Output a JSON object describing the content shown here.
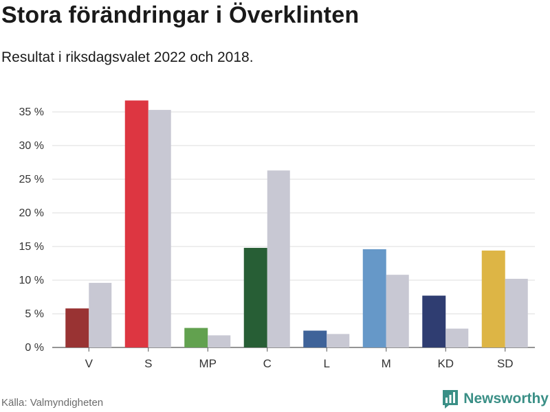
{
  "title": "Stora förändringar i Överklinten",
  "subtitle": "Resultat i riksdagsvalet 2022 och 2018.",
  "source": "Källa: Valmyndigheten",
  "brand": {
    "name": "Newsworthy",
    "icon": "bar-chart-logo-icon",
    "color": "#3a8f86"
  },
  "chart_data": {
    "type": "bar",
    "categories": [
      "V",
      "S",
      "MP",
      "C",
      "L",
      "M",
      "KD",
      "SD"
    ],
    "series": [
      {
        "name": "2022",
        "values": [
          5.8,
          36.7,
          2.9,
          14.8,
          2.5,
          14.6,
          7.7,
          14.4
        ],
        "colors": [
          "#993333",
          "#dd3641",
          "#62a14f",
          "#275e35",
          "#3f6399",
          "#6698c8",
          "#2f3d71",
          "#ddb545"
        ]
      },
      {
        "name": "2018",
        "values": [
          9.6,
          35.3,
          1.8,
          26.3,
          2.0,
          10.8,
          2.8,
          10.2
        ],
        "color": "#c8c8d3"
      }
    ],
    "yticks": [
      "0 %",
      "5 %",
      "10 %",
      "15 %",
      "20 %",
      "25 %",
      "30 %",
      "35 %"
    ],
    "ytick_values": [
      0,
      5,
      10,
      15,
      20,
      25,
      30,
      35
    ],
    "ylim": [
      0,
      37
    ],
    "xlabel": "",
    "ylabel": "",
    "grid": true
  }
}
